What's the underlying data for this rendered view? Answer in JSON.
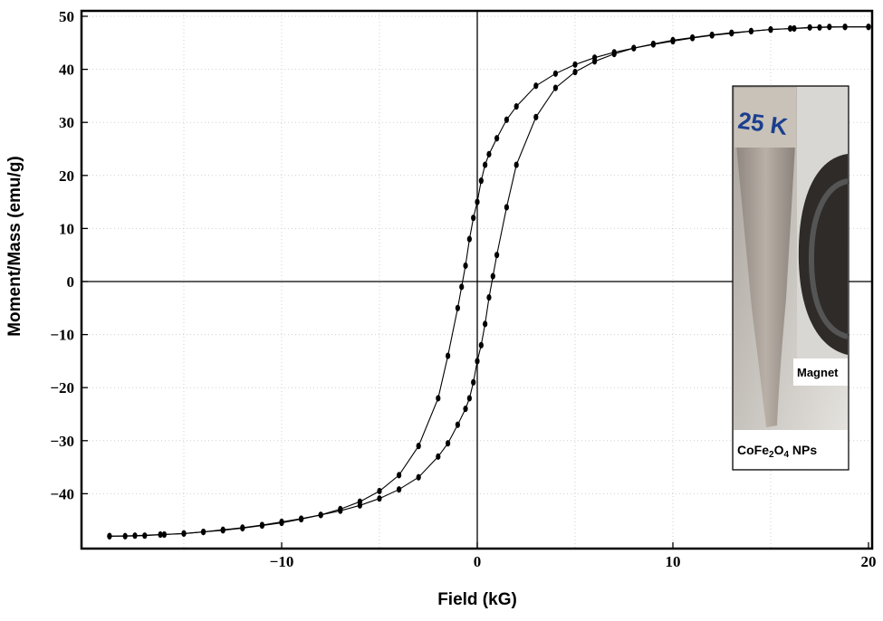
{
  "chart_data": {
    "type": "scatter",
    "title": "",
    "xlabel": "Field (kG)",
    "ylabel": "Moment/Mass (emu/g)",
    "xlim": [
      -19.7,
      20
    ],
    "ylim": [
      -50,
      50
    ],
    "x_ticks": [
      -10,
      0,
      10,
      20
    ],
    "x_tick_labels": [
      "−10",
      "0",
      "10",
      "20"
    ],
    "y_ticks": [
      50,
      40,
      30,
      20,
      10,
      0,
      -10,
      -20,
      -30,
      -40
    ],
    "y_tick_labels": [
      "50",
      "40",
      "30",
      "20",
      "10",
      "0",
      "−10",
      "−20",
      "−30",
      "−40"
    ],
    "grid": true,
    "series": [
      {
        "name": "",
        "x": [
          20,
          18.8,
          17.5,
          16.2,
          15,
          14,
          13,
          12,
          11,
          10,
          9,
          8,
          7,
          6,
          5,
          4,
          3,
          2,
          1.5,
          1,
          0.6,
          0.4,
          0.2,
          0,
          -0.2,
          -0.4,
          -0.6,
          -0.8,
          -1,
          -1.5,
          -2,
          -3,
          -4,
          -5,
          -6,
          -7,
          -8,
          -9,
          -10,
          -11,
          -12,
          -13,
          -14,
          -15,
          -16,
          -17,
          -18,
          -18.8
        ],
        "y": [
          48,
          48,
          47.9,
          47.7,
          47.5,
          47.2,
          46.8,
          46.4,
          45.9,
          45.3,
          44.7,
          44,
          43.2,
          42.2,
          40.9,
          39.2,
          36.9,
          33,
          30.5,
          27,
          24,
          22,
          19,
          15,
          12,
          8,
          3,
          -1,
          -5,
          -14,
          -22,
          -31,
          -36.5,
          -39.5,
          -41.5,
          -42.9,
          -44,
          -44.8,
          -45.5,
          -46,
          -46.5,
          -46.9,
          -47.2,
          -47.5,
          -47.7,
          -47.9,
          -48,
          -48
        ]
      },
      {
        "name": "",
        "x": [
          -18.8,
          -17.5,
          -16.2,
          -15,
          -14,
          -13,
          -12,
          -11,
          -10,
          -9,
          -8,
          -7,
          -6,
          -5,
          -4,
          -3,
          -2,
          -1.5,
          -1,
          -0.6,
          -0.4,
          -0.2,
          0,
          0.2,
          0.4,
          0.6,
          0.8,
          1,
          1.5,
          2,
          3,
          4,
          5,
          6,
          7,
          8,
          9,
          10,
          11,
          12,
          13,
          14,
          15,
          16,
          17,
          18,
          18.8,
          20
        ],
        "y": [
          -48,
          -47.9,
          -47.7,
          -47.5,
          -47.2,
          -46.8,
          -46.4,
          -45.9,
          -45.3,
          -44.7,
          -44,
          -43.2,
          -42.2,
          -40.9,
          -39.2,
          -36.9,
          -33,
          -30.5,
          -27,
          -24,
          -22,
          -19,
          -15,
          -12,
          -8,
          -3,
          1,
          5,
          14,
          22,
          31,
          36.5,
          39.5,
          41.5,
          42.9,
          44,
          44.8,
          45.5,
          46,
          46.5,
          46.9,
          47.2,
          47.5,
          47.7,
          47.9,
          48,
          48,
          48
        ]
      }
    ],
    "inset": {
      "tube_label": "25 K",
      "magnet_label": "Magnet",
      "caption_base": "CoFe",
      "caption_sub1": "2",
      "caption_mid": "O",
      "caption_sub2": "4",
      "caption_end": " NPs"
    }
  }
}
